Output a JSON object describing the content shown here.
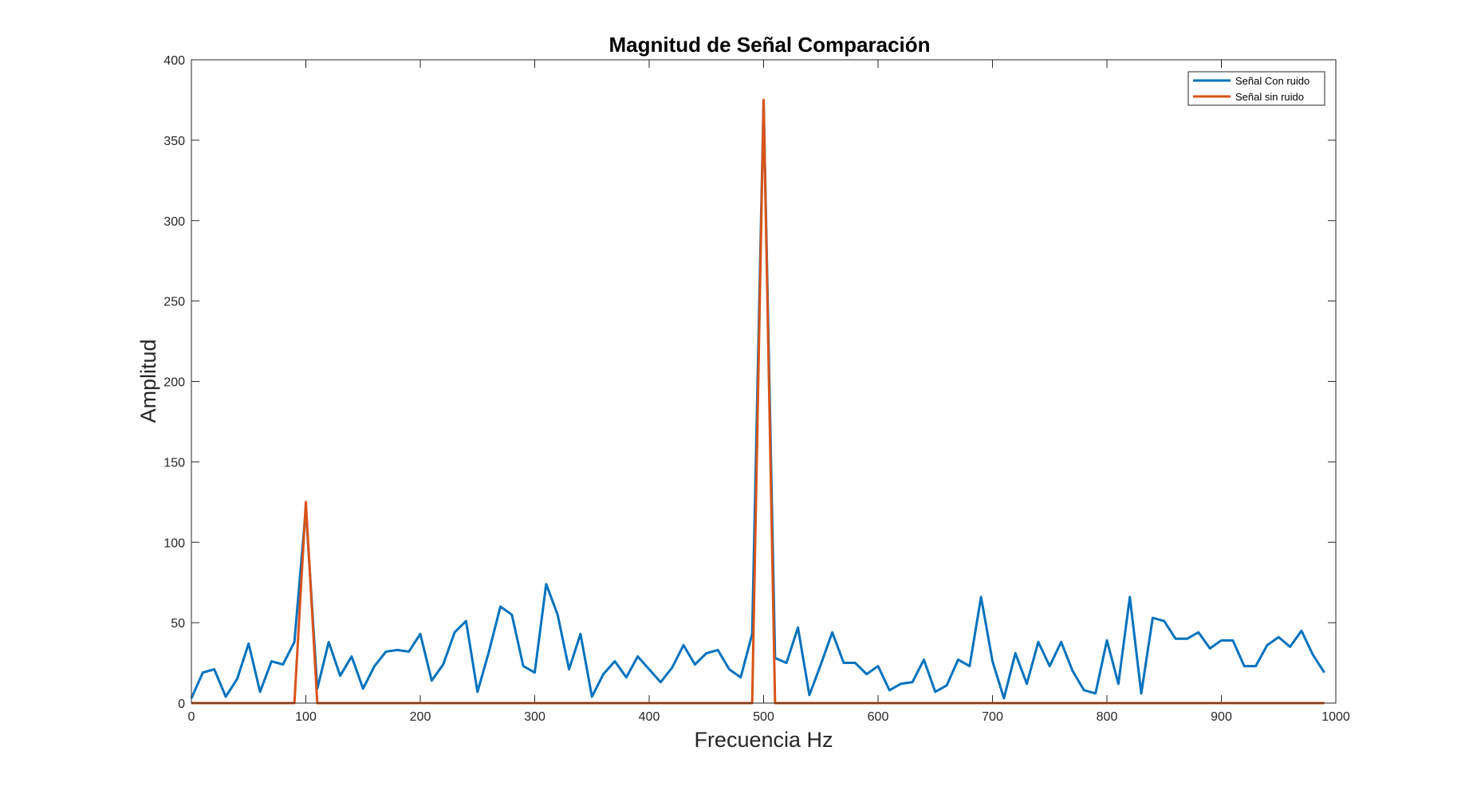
{
  "chart_data": {
    "type": "line",
    "title": "Magnitud de Señal Comparación",
    "xlabel": "Frecuencia Hz",
    "ylabel": "Amplitud",
    "xlim": [
      0,
      1000
    ],
    "ylim": [
      0,
      400
    ],
    "xticks": [
      0,
      100,
      200,
      300,
      400,
      500,
      600,
      700,
      800,
      900,
      1000
    ],
    "yticks": [
      0,
      50,
      100,
      150,
      200,
      250,
      300,
      350,
      400
    ],
    "grid": false,
    "legend_position": "top-right",
    "x": [
      0,
      10,
      20,
      30,
      40,
      50,
      60,
      70,
      80,
      90,
      100,
      110,
      120,
      130,
      140,
      150,
      160,
      170,
      180,
      190,
      200,
      210,
      220,
      230,
      240,
      250,
      260,
      270,
      280,
      290,
      300,
      310,
      320,
      330,
      340,
      350,
      360,
      370,
      380,
      390,
      400,
      410,
      420,
      430,
      440,
      450,
      460,
      470,
      480,
      490,
      500,
      510,
      520,
      530,
      540,
      550,
      560,
      570,
      580,
      590,
      600,
      610,
      620,
      630,
      640,
      650,
      660,
      670,
      680,
      690,
      700,
      710,
      720,
      730,
      740,
      750,
      760,
      770,
      780,
      790,
      800,
      810,
      820,
      830,
      840,
      850,
      860,
      870,
      880,
      890,
      900,
      910,
      920,
      930,
      940,
      950,
      960,
      970,
      980,
      990
    ],
    "series": [
      {
        "name": "Señal Con ruido",
        "color": "#0072BD",
        "values": [
          3,
          19,
          21,
          4,
          15,
          37,
          7,
          26,
          24,
          38,
          121,
          9,
          38,
          17,
          29,
          9,
          23,
          32,
          33,
          32,
          43,
          14,
          24,
          44,
          51,
          7,
          32,
          60,
          55,
          23,
          19,
          74,
          55,
          21,
          43,
          4,
          18,
          26,
          16,
          29,
          21,
          13,
          22,
          36,
          24,
          31,
          33,
          21,
          16,
          43,
          375,
          28,
          25,
          47,
          5,
          24,
          44,
          25,
          25,
          18,
          23,
          8,
          12,
          13,
          27,
          7,
          11,
          27,
          23,
          66,
          26,
          3,
          31,
          12,
          38,
          23,
          38,
          20,
          8,
          6,
          39,
          12,
          66,
          6,
          53,
          51,
          40,
          40,
          44,
          34,
          39,
          39,
          23,
          23,
          36,
          41,
          35,
          45,
          30,
          19
        ]
      },
      {
        "name": "Señal sin ruido",
        "color": "#D95319",
        "values": [
          0,
          0,
          0,
          0,
          0,
          0,
          0,
          0,
          0,
          0,
          125,
          0,
          0,
          0,
          0,
          0,
          0,
          0,
          0,
          0,
          0,
          0,
          0,
          0,
          0,
          0,
          0,
          0,
          0,
          0,
          0,
          0,
          0,
          0,
          0,
          0,
          0,
          0,
          0,
          0,
          0,
          0,
          0,
          0,
          0,
          0,
          0,
          0,
          0,
          0,
          375,
          0,
          0,
          0,
          0,
          0,
          0,
          0,
          0,
          0,
          0,
          0,
          0,
          0,
          0,
          0,
          0,
          0,
          0,
          0,
          0,
          0,
          0,
          0,
          0,
          0,
          0,
          0,
          0,
          0,
          0,
          0,
          0,
          0,
          0,
          0,
          0,
          0,
          0,
          0,
          0,
          0,
          0,
          0,
          0,
          0,
          0,
          0,
          0,
          0
        ]
      }
    ]
  }
}
